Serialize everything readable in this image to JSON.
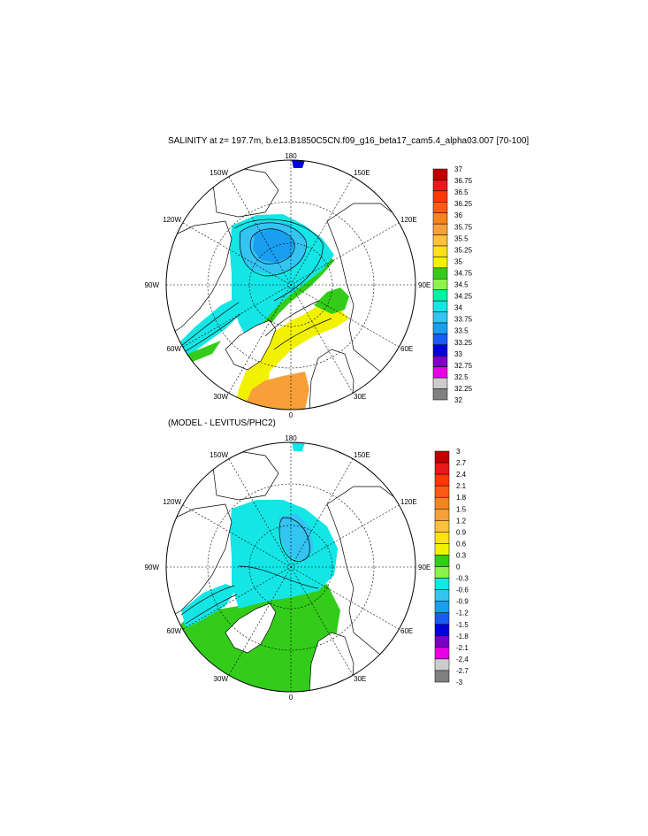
{
  "plot1": {
    "title": "SALINITY at z= 197.7m, b.e13.B1850C5CN.f09_g16_beta17_cam5.4_alpha03.007 [70-100]",
    "lon_labels": {
      "top": "180",
      "bottom": "0",
      "left": "90W",
      "right": "90E",
      "w150": "150W",
      "e150": "150E",
      "w120": "120W",
      "e120": "120E",
      "w60": "60W",
      "e60": "60E",
      "w30": "30W",
      "e30": "30E"
    },
    "colorbar": {
      "colors": [
        "#c00000",
        "#e51a1a",
        "#ff3a00",
        "#ff5a14",
        "#f5841f",
        "#f7a03a",
        "#ffc03c",
        "#ffe01a",
        "#f2f200",
        "#33cc1a",
        "#8cf24c",
        "#00f2a6",
        "#14e6e6",
        "#33c4f2",
        "#1a9ef0",
        "#1a5cf2",
        "#0000d9",
        "#7a00c2",
        "#e600e6",
        "#cccccc",
        "#808080"
      ],
      "labels": [
        "37",
        "36.75",
        "36.5",
        "36.25",
        "36",
        "35.75",
        "35.5",
        "35.25",
        "35",
        "34.75",
        "34.5",
        "34.25",
        "34",
        "33.75",
        "33.5",
        "33.25",
        "33",
        "32.75",
        "32.5",
        "32.25",
        "32"
      ]
    }
  },
  "plot2": {
    "title": "(MODEL - LEVITUS/PHC2)",
    "lon_labels": {
      "top": "180",
      "bottom": "0",
      "left": "90W",
      "right": "90E",
      "w150": "150W",
      "e150": "150E",
      "w120": "120W",
      "e120": "120E",
      "w60": "60W",
      "e60": "60E",
      "w30": "30W",
      "e30": "30E"
    },
    "colorbar": {
      "colors": [
        "#c00000",
        "#e51a1a",
        "#ff3a00",
        "#ff5a14",
        "#f5841f",
        "#f7a03a",
        "#ffc03c",
        "#ffe01a",
        "#f2f200",
        "#33cc1a",
        "#8cf24c",
        "#14e6e6",
        "#33c4f2",
        "#1a9ef0",
        "#1a5cf2",
        "#0000d9",
        "#7a00c2",
        "#e600e6",
        "#cccccc",
        "#808080"
      ],
      "labels": [
        "3",
        "2.7",
        "2.4",
        "2.1",
        "1.8",
        "1.5",
        "1.2",
        "0.9",
        "0.6",
        "0.3",
        "0",
        "-0.3",
        "-0.6",
        "-0.9",
        "-1.2",
        "-1.5",
        "-1.8",
        "-2.1",
        "-2.4",
        "-2.7",
        "-3"
      ]
    }
  }
}
